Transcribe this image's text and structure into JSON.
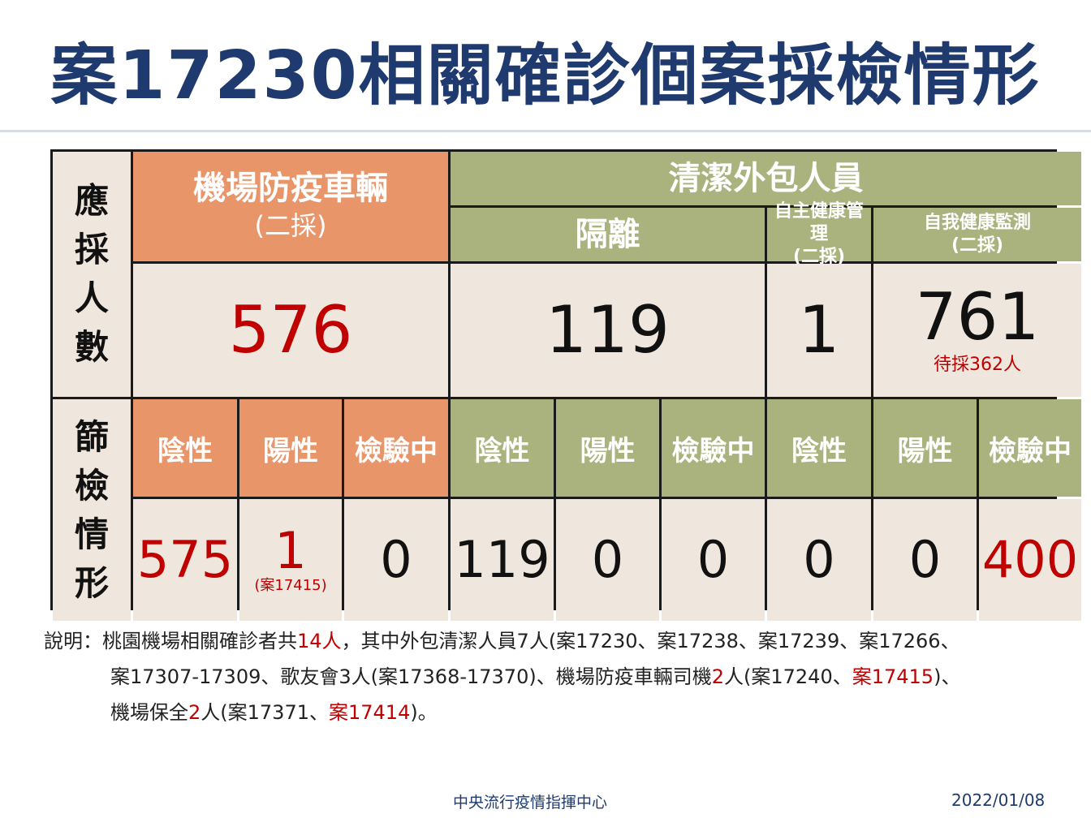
{
  "title": "案17230相關確診個案採檢情形",
  "table": {
    "row_label_1": [
      "應",
      "採",
      "人",
      "數"
    ],
    "row_label_2": [
      "篩",
      "檢",
      "情",
      "形"
    ],
    "group_airport": {
      "title": "機場防疫車輛",
      "sub": "(二採)"
    },
    "group_cleaning": "清潔外包人員",
    "sub_isolation": "隔離",
    "sub_self_mgmt": {
      "title": "自主健康管理",
      "sub": "(二採)"
    },
    "sub_self_monitor": {
      "title": "自我健康監測",
      "sub": "(二採)"
    },
    "counts": {
      "airport": "576",
      "isolation": "119",
      "self_mgmt": "1",
      "self_monitor": "761",
      "self_monitor_note": "待採362人"
    },
    "col_headers": [
      "陰性",
      "陽性",
      "檢驗中",
      "陰性",
      "陽性",
      "檢驗中",
      "陰性",
      "陽性",
      "檢驗中"
    ],
    "results": [
      "575",
      "1",
      "0",
      "119",
      "0",
      "0",
      "0",
      "0",
      "400"
    ],
    "result_note": "(案17415)"
  },
  "description": {
    "label": "說明：",
    "line1": [
      {
        "t": "桃園機場相關確診者共",
        "red": false
      },
      {
        "t": "14人",
        "red": true
      },
      {
        "t": "，其中外包清潔人員7人(案17230、案17238、案17239、案17266、",
        "red": false
      }
    ],
    "line2": [
      {
        "t": "案17307-17309、歌友會3人(案17368-17370)、機場防疫車輛司機",
        "red": false
      },
      {
        "t": "2",
        "red": true
      },
      {
        "t": "人(案17240、",
        "red": false
      },
      {
        "t": "案17415",
        "red": true
      },
      {
        "t": ")、",
        "red": false
      }
    ],
    "line3": [
      {
        "t": "機場保全",
        "red": false
      },
      {
        "t": "2",
        "red": true
      },
      {
        "t": "人(案17371、",
        "red": false
      },
      {
        "t": "案17414",
        "red": true
      },
      {
        "t": ")。",
        "red": false
      }
    ]
  },
  "footer": {
    "org": "中央流行疫情指揮中心",
    "date": "2022/01/08"
  },
  "colors": {
    "title": "#1f3a6e",
    "orange": "#e9956a",
    "olive": "#aab27e",
    "beige": "#efe7dd",
    "red": "#c00000"
  }
}
